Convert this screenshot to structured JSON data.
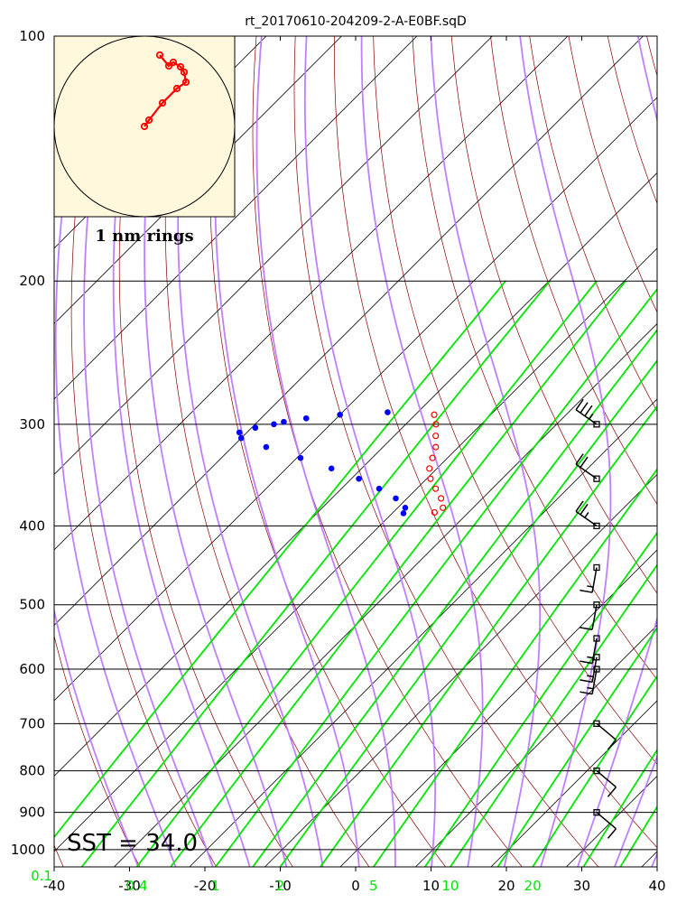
{
  "title": "rt_20170610-204209-2-A-E0BF.sqD",
  "sst_label": "SST = 34.0",
  "inset": {
    "caption": "1 nm rings"
  },
  "colors": {
    "temperature": "#ff0000",
    "dewpoint": "#0000ff",
    "isotherm": "#000000",
    "dry_adiabat": "#8b0000",
    "moist_adiabat": "#bf7fff",
    "mixing_ratio": "#00e600",
    "inset_background": "#fff8dc",
    "track": "#ff0000"
  },
  "chart_data": {
    "type": "skew-t log-p",
    "x_ticks": [
      "-40",
      "-30",
      "-20",
      "-10",
      "0",
      "10",
      "20",
      "30",
      "40"
    ],
    "y_ticks": [
      "100",
      "200",
      "300",
      "400",
      "500",
      "600",
      "700",
      "800",
      "900",
      "1000"
    ],
    "mixing_ratio_labels": [
      {
        "label": "0.1",
        "w": 0.1
      },
      {
        "label": "0.4",
        "w": 0.4
      },
      {
        "label": "1",
        "w": 1
      },
      {
        "label": "2",
        "w": 2
      },
      {
        "label": "5",
        "w": 5
      },
      {
        "label": "10",
        "w": 10
      },
      {
        "label": "20",
        "w": 20
      }
    ],
    "xlim": [
      -40,
      40
    ],
    "ylim": [
      1050,
      100
    ],
    "temperature": [
      {
        "p": 292,
        "t": -47.5
      },
      {
        "p": 300,
        "t": -46.0
      },
      {
        "p": 310,
        "t": -44.5
      },
      {
        "p": 320,
        "t": -43.0
      },
      {
        "p": 330,
        "t": -42.0
      },
      {
        "p": 340,
        "t": -41.0
      },
      {
        "p": 350,
        "t": -39.5
      },
      {
        "p": 360,
        "t": -37.5
      },
      {
        "p": 370,
        "t": -35.5
      },
      {
        "p": 380,
        "t": -34.0
      },
      {
        "p": 385,
        "t": -34.5
      }
    ],
    "dewpoint": [
      {
        "p": 290,
        "t": -54.0
      },
      {
        "p": 292,
        "t": -60.0
      },
      {
        "p": 295,
        "t": -64.0
      },
      {
        "p": 298,
        "t": -66.5
      },
      {
        "p": 300,
        "t": -67.5
      },
      {
        "p": 303,
        "t": -69.5
      },
      {
        "p": 307,
        "t": -71.0
      },
      {
        "p": 312,
        "t": -70.0
      },
      {
        "p": 320,
        "t": -65.5
      },
      {
        "p": 330,
        "t": -59.5
      },
      {
        "p": 340,
        "t": -54.0
      },
      {
        "p": 350,
        "t": -49.0
      },
      {
        "p": 360,
        "t": -45.0
      },
      {
        "p": 370,
        "t": -41.5
      },
      {
        "p": 380,
        "t": -39.0
      },
      {
        "p": 386,
        "t": -38.5
      }
    ],
    "wind_barbs": [
      {
        "p": 300,
        "speed": 25
      },
      {
        "p": 350,
        "speed": 20
      },
      {
        "p": 400,
        "speed": 15
      },
      {
        "p": 450,
        "speed": 5
      },
      {
        "p": 500,
        "speed": 10
      },
      {
        "p": 550,
        "speed": 5
      },
      {
        "p": 580,
        "speed": 5
      },
      {
        "p": 600,
        "speed": 5
      },
      {
        "p": 700,
        "speed": 10
      },
      {
        "p": 800,
        "speed": 10
      },
      {
        "p": 900,
        "speed": 10
      }
    ]
  }
}
